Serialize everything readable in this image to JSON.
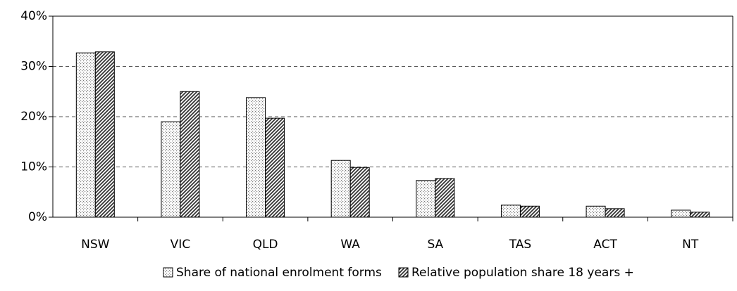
{
  "chart_data": {
    "type": "bar",
    "categories": [
      "NSW",
      "VIC",
      "QLD",
      "WA",
      "SA",
      "TAS",
      "ACT",
      "NT"
    ],
    "series": [
      {
        "name": "Share of national enrolment forms",
        "color": "#7a7a7a",
        "pattern": "dots",
        "values": [
          32.7,
          19.0,
          23.8,
          11.3,
          7.3,
          2.4,
          2.2,
          1.4
        ]
      },
      {
        "name": "Relative population share 18 years +",
        "color": "#333333",
        "pattern": "hatch",
        "values": [
          32.9,
          25.0,
          19.7,
          9.9,
          7.7,
          2.2,
          1.7,
          1.0
        ]
      }
    ],
    "ylim": [
      0,
      40
    ],
    "yticks": [
      {
        "value": 0,
        "label": "0%"
      },
      {
        "value": 10,
        "label": "10%"
      },
      {
        "value": 20,
        "label": "20%"
      },
      {
        "value": 30,
        "label": "30%"
      },
      {
        "value": 40,
        "label": "40%"
      }
    ],
    "grid": true,
    "legend": "bottom"
  }
}
